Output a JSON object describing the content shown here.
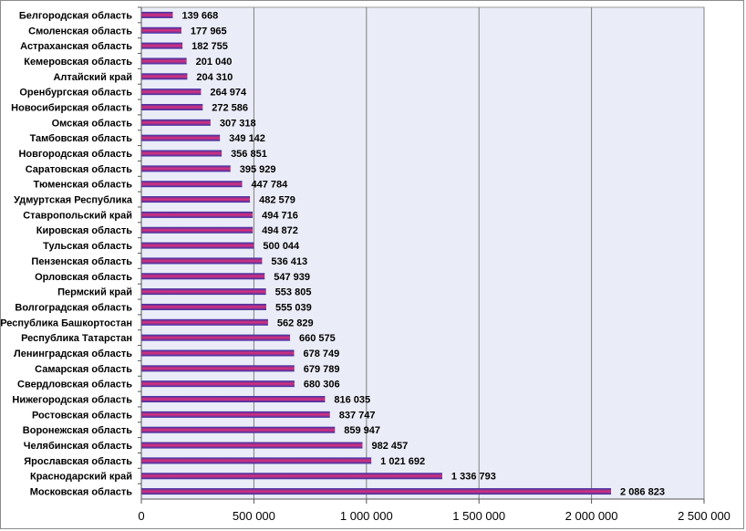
{
  "chart_data": {
    "type": "bar",
    "orientation": "horizontal",
    "categories": [
      "Белгородская область",
      "Смоленская область",
      "Астраханская область",
      "Кемеровская область",
      "Алтайский край",
      "Оренбургская область",
      "Новосибирская область",
      "Омская область",
      "Тамбовская область",
      "Новгородская область",
      "Саратовская область",
      "Тюменская область",
      "Удмуртская Республика",
      "Ставропольский край",
      "Кировская область",
      "Тульская область",
      "Пензенская область",
      "Орловская область",
      "Пермский край",
      "Волгоградская область",
      "Республика Башкортостан",
      "Республика Татарстан",
      "Ленинградская область",
      "Самарская область",
      "Свердловская область",
      "Нижегородская область",
      "Ростовская область",
      "Воронежская область",
      "Челябинская область",
      "Ярославская область",
      "Краснодарский край",
      "Московская область"
    ],
    "values": [
      139668,
      177965,
      182755,
      201040,
      204310,
      264974,
      272586,
      307318,
      349142,
      356851,
      395929,
      447784,
      482579,
      494716,
      494872,
      500044,
      536413,
      547939,
      553805,
      555039,
      562829,
      660575,
      678749,
      679789,
      680306,
      816035,
      837747,
      859947,
      982457,
      1021692,
      1336793,
      2086823
    ],
    "value_labels": [
      "139 668",
      "177 965",
      "182 755",
      "201 040",
      "204 310",
      "264 974",
      "272 586",
      "307 318",
      "349 142",
      "356 851",
      "395 929",
      "447 784",
      "482 579",
      "494 716",
      "494 872",
      "500 044",
      "536 413",
      "547 939",
      "553 805",
      "555 039",
      "562 829",
      "660 575",
      "678 749",
      "679 789",
      "680 306",
      "816 035",
      "837 747",
      "859 947",
      "982 457",
      "1 021 692",
      "1 336 793",
      "2 086 823"
    ],
    "xlim": [
      0,
      2500000
    ],
    "x_ticks": [
      0,
      500000,
      1000000,
      1500000,
      2000000,
      2500000
    ],
    "x_tick_labels": [
      "0",
      "500 000",
      "1 000 000",
      "1 500 000",
      "2 000 000",
      "2 500 000"
    ],
    "title": "",
    "xlabel": "",
    "ylabel": "",
    "grid": "vertical",
    "legend": "none",
    "colors": {
      "bar_top": "#3333aa",
      "bar_mid": "#e0307a",
      "bar_bottom": "#3333aa",
      "plot_background": "#eaedf7",
      "gridline": "#7f7f7f"
    }
  }
}
